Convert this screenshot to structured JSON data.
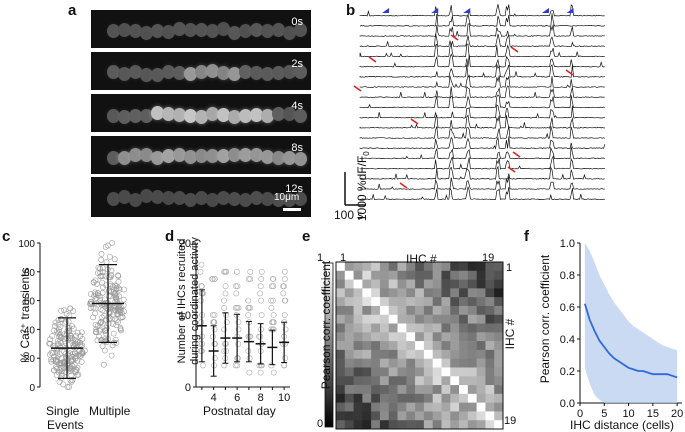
{
  "panels": {
    "a": {
      "label": "a",
      "frames": [
        "0s",
        "2s",
        "4s",
        "8s",
        "12s"
      ],
      "scalebar": "10μm",
      "cell_intensity": [
        0.15,
        0.55,
        0.85,
        0.6,
        0.1
      ]
    },
    "b": {
      "label": "b",
      "ylabel": "1000 %dF/F",
      "ylabel_sub": "0",
      "xscale": "100 s",
      "n_traces": 19
    },
    "c": {
      "label": "c",
      "ylabel": "% Ca²⁺ transients",
      "categories": [
        "Single",
        "Multiple"
      ],
      "xlabel_extra": "Events",
      "yticks": [
        "0",
        "20",
        "40",
        "60",
        "80",
        "100"
      ],
      "ylim": [
        0,
        100
      ]
    },
    "d": {
      "label": "d",
      "ylabel_line1": "Number of IHCs recruited",
      "ylabel_line2": "during coordinated activity",
      "xlabel": "Postnatal day",
      "yticks": [
        "0",
        "10",
        "20"
      ],
      "xticks": [
        "4",
        "6",
        "8",
        "10"
      ],
      "ylim": [
        0,
        20
      ]
    },
    "e": {
      "label": "e",
      "xlabel": "IHC #",
      "ylabel": "IHC #",
      "cbar_label": "Pearson corr. coefficient",
      "cbar_ticks": [
        "1",
        "0"
      ],
      "corner_top_left": "1",
      "corner_top_right": "19",
      "corner_right_top": "1",
      "corner_right_bottom": "19"
    },
    "f": {
      "label": "f",
      "ylabel": "Pearson corr. coefficient",
      "xlabel": "IHC distance (cells)",
      "yticks": [
        "0.0",
        "0.2",
        "0.4",
        "0.6",
        "0.8",
        "1.0"
      ],
      "xticks": [
        "0",
        "5",
        "10",
        "15",
        "20"
      ]
    }
  },
  "chart_data": [
    {
      "type": "scatter",
      "title": "",
      "xlabel": "",
      "ylabel": "% Ca²⁺ transients",
      "categories": [
        "Single Events",
        "Multiple Events"
      ],
      "series": [
        {
          "values": [
            27,
            58
          ]
        }
      ],
      "mean": [
        27,
        58
      ],
      "sd": [
        21,
        27
      ],
      "ylim": [
        0,
        100
      ]
    },
    {
      "type": "scatter",
      "title": "",
      "xlabel": "Postnatal day",
      "ylabel": "Number of IHCs recruited during coordinated activity",
      "x": [
        3,
        4,
        5,
        6,
        7,
        8,
        9,
        10
      ],
      "series": [
        {
          "values": [
            8.5,
            5,
            6.8,
            6.8,
            6.3,
            6,
            5.5,
            6.2
          ]
        }
      ],
      "sd": [
        5,
        3.5,
        3.5,
        3.3,
        2.8,
        2.8,
        2.4,
        2.8
      ],
      "xlim": [
        2.5,
        10.5
      ],
      "ylim": [
        0,
        20
      ]
    },
    {
      "type": "heatmap",
      "title": "",
      "xlabel": "IHC #",
      "ylabel": "IHC #",
      "size": 19,
      "range": [
        0,
        1
      ]
    },
    {
      "type": "line",
      "title": "",
      "xlabel": "IHC distance (cells)",
      "ylabel": "Pearson corr. coefficient",
      "x": [
        1,
        2,
        3,
        4,
        5,
        6,
        7,
        8,
        9,
        10,
        11,
        12,
        13,
        14,
        15,
        16,
        17,
        18,
        19,
        20
      ],
      "series": [
        {
          "values": [
            0.62,
            0.52,
            0.45,
            0.39,
            0.35,
            0.31,
            0.28,
            0.26,
            0.24,
            0.22,
            0.21,
            0.2,
            0.2,
            0.19,
            0.18,
            0.18,
            0.18,
            0.18,
            0.17,
            0.16
          ]
        }
      ],
      "upper": [
        1.0,
        0.95,
        0.88,
        0.8,
        0.74,
        0.68,
        0.63,
        0.59,
        0.55,
        0.51,
        0.48,
        0.46,
        0.44,
        0.42,
        0.4,
        0.38,
        0.36,
        0.35,
        0.34,
        0.33
      ],
      "lower": [
        0.22,
        0.12,
        0.05,
        0.02,
        0.0,
        0.0,
        0.0,
        0.0,
        0.0,
        0.0,
        0.0,
        0.0,
        0.0,
        0.0,
        0.0,
        0.0,
        0.0,
        0.0,
        0.0,
        0.0
      ],
      "xlim": [
        0,
        21
      ],
      "ylim": [
        0,
        1.0
      ]
    }
  ]
}
